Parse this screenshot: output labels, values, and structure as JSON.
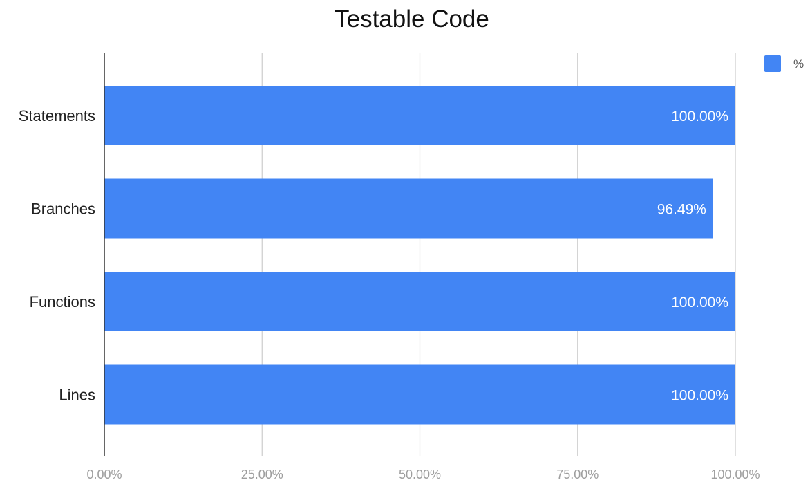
{
  "chart_data": {
    "type": "bar",
    "orientation": "horizontal",
    "title": "Testable Code",
    "categories": [
      "Statements",
      "Branches",
      "Functions",
      "Lines"
    ],
    "series": [
      {
        "name": "%",
        "values": [
          100.0,
          96.49,
          100.0,
          100.0
        ],
        "data_labels": [
          "100.00%",
          "96.49%",
          "100.00%",
          "100.00%"
        ]
      }
    ],
    "xlim": [
      0,
      100
    ],
    "x_ticks": [
      0,
      25,
      50,
      75,
      100
    ],
    "x_tick_labels": [
      "0.00%",
      "25.00%",
      "50.00%",
      "75.00%",
      "100.00%"
    ],
    "xlabel": "",
    "ylabel": "",
    "grid": true,
    "legend_position": "top-right",
    "colors": {
      "bar": "#4285f4",
      "grid": "#cccccc",
      "axis": "#333333"
    }
  }
}
